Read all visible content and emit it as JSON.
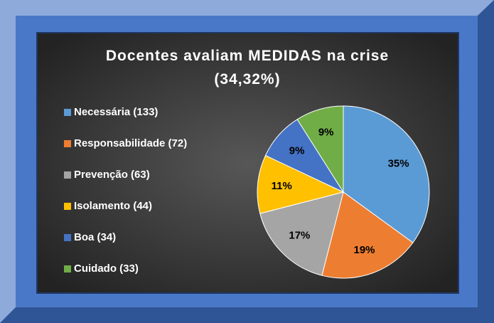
{
  "chart_data": {
    "type": "pie",
    "title": "Docentes avaliam MEDIDAS na crise (34,32%)",
    "categories": [
      "Necessária (133)",
      "Responsabilidade (72)",
      "Prevenção (63)",
      "Isolamento (44)",
      "Boa (34)",
      "Cuidado (33)"
    ],
    "values": [
      35,
      19,
      17,
      11,
      9,
      9
    ],
    "value_labels": [
      "35%",
      "19%",
      "17%",
      "11%",
      "9%",
      "9%"
    ],
    "colors": [
      "#5b9bd5",
      "#ed7d31",
      "#a5a5a5",
      "#ffc000",
      "#4472c4",
      "#70ad47"
    ],
    "legend": "left"
  }
}
